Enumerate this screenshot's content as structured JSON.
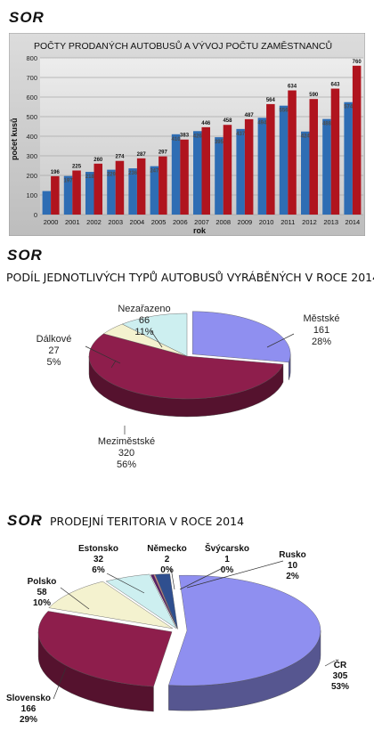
{
  "logos": [
    "SOR",
    "SOR",
    "SOR"
  ],
  "charts": [
    {
      "type": "bar",
      "title": "POČTY PRODANÝCH AUTOBUSŮ A VÝVOJ POČTU ZAMĚSTNANCŮ",
      "xlabel": "rok",
      "ylabel": "počet kusů",
      "ylim": [
        0,
        800
      ],
      "yticks": [
        0,
        100,
        200,
        300,
        400,
        500,
        600,
        700,
        800
      ],
      "grid": true,
      "categories": [
        "2000",
        "2001",
        "2002",
        "2003",
        "2004",
        "2005",
        "2006",
        "2007",
        "2008",
        "2009",
        "2010",
        "2011",
        "2012",
        "2013",
        "2014"
      ],
      "colors": {
        "series1": "#2e6db4",
        "series2": "#b0141e"
      },
      "series": [
        {
          "values": [
            120,
            197,
            218,
            229,
            236,
            247,
            410,
            426,
            395,
            437,
            494,
            556,
            424,
            488,
            574
          ],
          "labels": [
            "",
            "197",
            "218",
            "229",
            "236",
            "247",
            "410",
            "426",
            "395",
            "437",
            "494",
            "556",
            "424",
            "488",
            "574"
          ]
        },
        {
          "values": [
            196,
            225,
            260,
            274,
            287,
            297,
            383,
            446,
            458,
            487,
            564,
            634,
            590,
            643,
            760
          ],
          "labels": [
            "196",
            "225",
            "260",
            "274",
            "287",
            "297",
            "383",
            "446",
            "458",
            "487",
            "564",
            "634",
            "590",
            "643",
            "760"
          ]
        }
      ]
    },
    {
      "type": "pie",
      "title": "PODÍL JEDNOTLIVÝCH TYPŮ AUTOBUSŮ VYRÁBĚNÝCH V ROCE 2014",
      "slices": [
        {
          "name": "Městské",
          "value": 161,
          "percent": "28%",
          "color": "#8f8ff0"
        },
        {
          "name": "Meziměstské",
          "value": 320,
          "percent": "56%",
          "color": "#8e1e4c"
        },
        {
          "name": "Dálkové",
          "value": 27,
          "percent": "5%",
          "color": "#f4f2cf"
        },
        {
          "name": "Nezařazeno",
          "value": 66,
          "percent": "11%",
          "color": "#cdeff0"
        }
      ]
    },
    {
      "type": "pie",
      "title": "PRODEJNÍ TERITORIA V ROCE 2014",
      "slices": [
        {
          "name": "ČR",
          "value": 305,
          "percent": "53%",
          "color": "#8f8ff0"
        },
        {
          "name": "Slovensko",
          "value": 166,
          "percent": "29%",
          "color": "#8e1e4c"
        },
        {
          "name": "Polsko",
          "value": 58,
          "percent": "10%",
          "color": "#f4f2cf"
        },
        {
          "name": "Estonsko",
          "value": 32,
          "percent": "6%",
          "color": "#cdeff0"
        },
        {
          "name": "Německo",
          "value": 2,
          "percent": "0%",
          "color": "#5a1d66"
        },
        {
          "name": "Švýcarsko",
          "value": 1,
          "percent": "0%",
          "color": "#d98d8d"
        },
        {
          "name": "Rusko",
          "value": 10,
          "percent": "2%",
          "color": "#2f4f8f"
        }
      ]
    }
  ]
}
